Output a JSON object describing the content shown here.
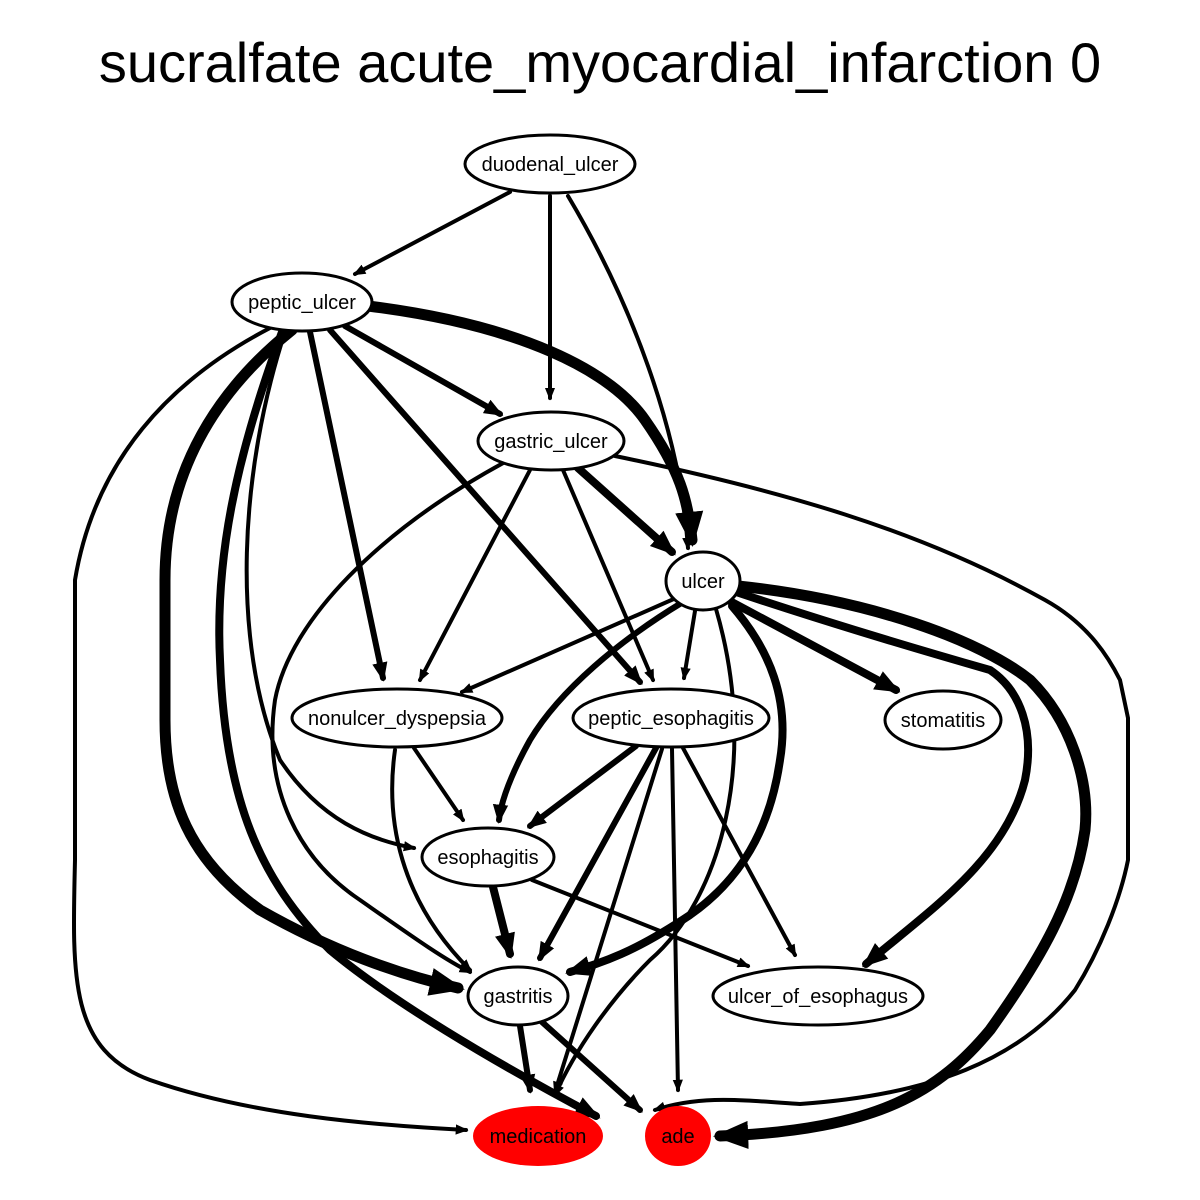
{
  "title": "sucralfate acute_myocardial_infarction 0",
  "colors": {
    "edge": "#000000",
    "node_fill": "#ffffff",
    "highlight_fill": "#ff0000"
  },
  "nodes": {
    "duodenal_ulcer": {
      "label": "duodenal_ulcer",
      "highlight": false
    },
    "peptic_ulcer": {
      "label": "peptic_ulcer",
      "highlight": false
    },
    "gastric_ulcer": {
      "label": "gastric_ulcer",
      "highlight": false
    },
    "ulcer": {
      "label": "ulcer",
      "highlight": false
    },
    "nonulcer_dyspepsia": {
      "label": "nonulcer_dyspepsia",
      "highlight": false
    },
    "peptic_esophagitis": {
      "label": "peptic_esophagitis",
      "highlight": false
    },
    "stomatitis": {
      "label": "stomatitis",
      "highlight": false
    },
    "esophagitis": {
      "label": "esophagitis",
      "highlight": false
    },
    "gastritis": {
      "label": "gastritis",
      "highlight": false
    },
    "ulcer_of_esophagus": {
      "label": "ulcer_of_esophagus",
      "highlight": false
    },
    "medication": {
      "label": "medication",
      "highlight": true
    },
    "ade": {
      "label": "ade",
      "highlight": true
    }
  },
  "edges": [
    {
      "source": "duodenal_ulcer",
      "target": "peptic_ulcer",
      "weight": 2
    },
    {
      "source": "duodenal_ulcer",
      "target": "gastric_ulcer",
      "weight": 2
    },
    {
      "source": "duodenal_ulcer",
      "target": "ulcer",
      "weight": 2
    },
    {
      "source": "peptic_ulcer",
      "target": "ulcer",
      "weight": 5
    },
    {
      "source": "peptic_ulcer",
      "target": "gastric_ulcer",
      "weight": 3
    },
    {
      "source": "peptic_ulcer",
      "target": "nonulcer_dyspepsia",
      "weight": 3
    },
    {
      "source": "peptic_ulcer",
      "target": "peptic_esophagitis",
      "weight": 3
    },
    {
      "source": "peptic_ulcer",
      "target": "esophagitis",
      "weight": 2
    },
    {
      "source": "peptic_ulcer",
      "target": "gastritis",
      "weight": 5
    },
    {
      "source": "peptic_ulcer",
      "target": "medication",
      "weight": 2
    },
    {
      "source": "peptic_ulcer",
      "target": "ade",
      "weight": 4
    },
    {
      "source": "gastric_ulcer",
      "target": "ulcer",
      "weight": 4
    },
    {
      "source": "gastric_ulcer",
      "target": "nonulcer_dyspepsia",
      "weight": 2
    },
    {
      "source": "gastric_ulcer",
      "target": "peptic_esophagitis",
      "weight": 2
    },
    {
      "source": "gastric_ulcer",
      "target": "gastritis",
      "weight": 2
    },
    {
      "source": "gastric_ulcer",
      "target": "ade",
      "weight": 2
    },
    {
      "source": "ulcer",
      "target": "nonulcer_dyspepsia",
      "weight": 2
    },
    {
      "source": "ulcer",
      "target": "peptic_esophagitis",
      "weight": 2
    },
    {
      "source": "ulcer",
      "target": "stomatitis",
      "weight": 4
    },
    {
      "source": "ulcer",
      "target": "esophagitis",
      "weight": 3
    },
    {
      "source": "ulcer",
      "target": "gastritis",
      "weight": 4
    },
    {
      "source": "ulcer",
      "target": "ulcer_of_esophagus",
      "weight": 4
    },
    {
      "source": "ulcer",
      "target": "medication",
      "weight": 2
    },
    {
      "source": "ulcer",
      "target": "ade",
      "weight": 5
    },
    {
      "source": "nonulcer_dyspepsia",
      "target": "esophagitis",
      "weight": 2
    },
    {
      "source": "nonulcer_dyspepsia",
      "target": "gastritis",
      "weight": 2
    },
    {
      "source": "peptic_esophagitis",
      "target": "esophagitis",
      "weight": 3
    },
    {
      "source": "peptic_esophagitis",
      "target": "gastritis",
      "weight": 3
    },
    {
      "source": "peptic_esophagitis",
      "target": "ulcer_of_esophagus",
      "weight": 2
    },
    {
      "source": "peptic_esophagitis",
      "target": "medication",
      "weight": 2
    },
    {
      "source": "peptic_esophagitis",
      "target": "ade",
      "weight": 2
    },
    {
      "source": "esophagitis",
      "target": "gastritis",
      "weight": 4
    },
    {
      "source": "esophagitis",
      "target": "ulcer_of_esophagus",
      "weight": 2
    },
    {
      "source": "gastritis",
      "target": "medication",
      "weight": 3
    },
    {
      "source": "gastritis",
      "target": "ade",
      "weight": 3
    }
  ]
}
